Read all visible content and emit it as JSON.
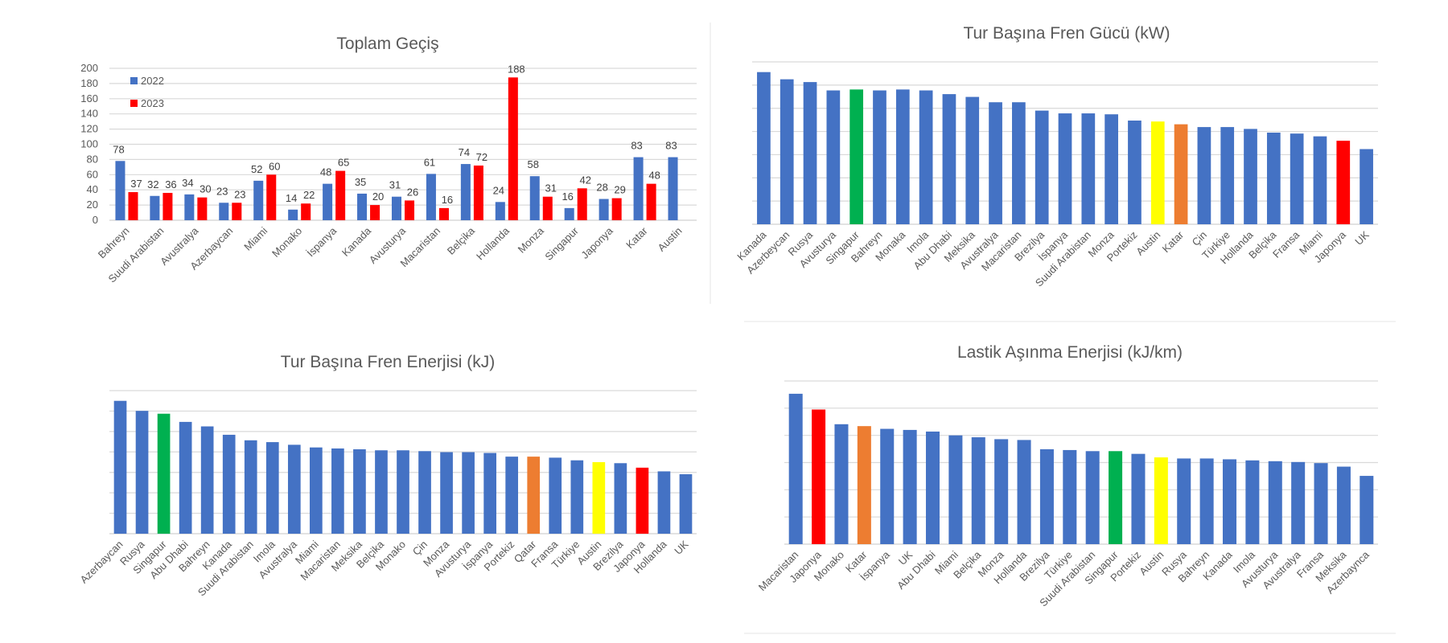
{
  "palette": {
    "blue": "#4472c4",
    "red": "#ff0000",
    "green": "#00b050",
    "yellow": "#ffff00",
    "orange": "#ed7d31"
  },
  "chart_data": [
    {
      "id": "toplam-gecis",
      "type": "bar",
      "title": "Toplam Geçiş",
      "xlabel": "",
      "ylabel": "",
      "ylim": [
        0,
        200
      ],
      "yticks": [
        0,
        20,
        40,
        60,
        80,
        100,
        120,
        140,
        160,
        180,
        200
      ],
      "grid": true,
      "legend": "top-left",
      "categories": [
        "Bahreyn",
        "Suudi Arabistan",
        "Avustralya",
        "Azerbaycan",
        "Miami",
        "Monako",
        "İspanya",
        "Kanada",
        "Avusturya",
        "Macaristan",
        "Belçika",
        "Hollanda",
        "Monza",
        "Singapur",
        "Japonya",
        "Katar",
        "Austin"
      ],
      "series": [
        {
          "name": "2022",
          "color": "#4472c4",
          "values": [
            78,
            32,
            34,
            23,
            52,
            14,
            48,
            35,
            31,
            61,
            74,
            24,
            58,
            16,
            28,
            83,
            83
          ]
        },
        {
          "name": "2023",
          "color": "#ff0000",
          "values": [
            37,
            36,
            30,
            23,
            60,
            22,
            65,
            20,
            26,
            16,
            72,
            188,
            31,
            42,
            29,
            48,
            null
          ]
        }
      ],
      "data_labels": true
    },
    {
      "id": "fren-gucu",
      "type": "bar",
      "title": "Tur Başına Fren Gücü (kW)",
      "xlabel": "",
      "ylabel": "",
      "note": "No y-axis tick labels shown; values are estimated in gridline units (7 gridline intervals).",
      "ylim": [
        0,
        7
      ],
      "grid": true,
      "legend": "none",
      "categories": [
        "Kanada",
        "Azerbeycan",
        "Rusya",
        "Avusturya",
        "Singapur",
        "Bahreyn",
        "Monaka",
        "Imola",
        "Abu Dhabi",
        "Meksika",
        "Avustralya",
        "Macaristan",
        "Brezilya",
        "İspanya",
        "Suudi Arabistan",
        "Monza",
        "Portekiz",
        "Austin",
        "Katar",
        "Çin",
        "Türkiye",
        "Hollanda",
        "Belçika",
        "Fransa",
        "Miami",
        "Japonya",
        "UK"
      ],
      "values": [
        6.56,
        6.25,
        6.13,
        5.77,
        5.81,
        5.77,
        5.81,
        5.77,
        5.61,
        5.49,
        5.26,
        5.26,
        4.9,
        4.78,
        4.78,
        4.74,
        4.47,
        4.43,
        4.31,
        4.19,
        4.19,
        4.11,
        3.95,
        3.91,
        3.79,
        3.6,
        3.24
      ],
      "colors": [
        "blue",
        "blue",
        "blue",
        "blue",
        "green",
        "blue",
        "blue",
        "blue",
        "blue",
        "blue",
        "blue",
        "blue",
        "blue",
        "blue",
        "blue",
        "blue",
        "blue",
        "yellow",
        "orange",
        "blue",
        "blue",
        "blue",
        "blue",
        "blue",
        "blue",
        "red",
        "blue"
      ]
    },
    {
      "id": "fren-enerjisi",
      "type": "bar",
      "title": "Tur Başına Fren Enerjisi (kJ)",
      "xlabel": "",
      "ylabel": "",
      "note": "No y-axis tick labels shown; values are estimated in gridline units (7 gridline intervals).",
      "ylim": [
        0,
        7
      ],
      "grid": true,
      "legend": "none",
      "categories": [
        "Azerbaycan",
        "Rusya",
        "Singapur",
        "Abu Dhabi",
        "Bahreyn",
        "Kanada",
        "Suudi Arabistan",
        "Imola",
        "Avustralya",
        "Miami",
        "Macaristan",
        "Meksika",
        "Belçika",
        "Monako",
        "Çin",
        "Monza",
        "Avusturya",
        "İspanya",
        "Portekiz",
        "Qatar",
        "Fransa",
        "Türkiye",
        "Austin",
        "Brezilya",
        "Japonya",
        "Hollanda",
        "UK"
      ],
      "values": [
        6.5,
        6.01,
        5.87,
        5.47,
        5.25,
        4.84,
        4.57,
        4.48,
        4.35,
        4.22,
        4.17,
        4.13,
        4.08,
        4.08,
        4.04,
        3.99,
        3.99,
        3.95,
        3.77,
        3.77,
        3.72,
        3.59,
        3.5,
        3.45,
        3.23,
        3.05,
        2.91
      ],
      "colors": [
        "blue",
        "blue",
        "green",
        "blue",
        "blue",
        "blue",
        "blue",
        "blue",
        "blue",
        "blue",
        "blue",
        "blue",
        "blue",
        "blue",
        "blue",
        "blue",
        "blue",
        "blue",
        "blue",
        "orange",
        "blue",
        "blue",
        "yellow",
        "blue",
        "red",
        "blue",
        "blue"
      ]
    },
    {
      "id": "lastik-asinma",
      "type": "bar",
      "title": "Lastik Aşınma Enerjisi (kJ/km)",
      "xlabel": "",
      "ylabel": "",
      "note": "No y-axis tick labels shown; values are estimated in gridline units (6 gridline intervals).",
      "ylim": [
        0,
        6
      ],
      "grid": true,
      "legend": "none",
      "categories": [
        "Macaristan",
        "Japonya",
        "Monako",
        "Katar",
        "İspanya",
        "UK",
        "Abu Dhabi",
        "Miami",
        "Belçika",
        "Monza",
        "Hollanda",
        "Brezilya",
        "Türkiye",
        "Suudi Arabistan",
        "Singapur",
        "Portekiz",
        "Austin",
        "Rusya",
        "Bahreyn",
        "Kanada",
        "Imola",
        "Avusturya",
        "Avustralya",
        "Fransa",
        "Meksika",
        "Azerbaynca"
      ],
      "values": [
        5.53,
        4.95,
        4.41,
        4.34,
        4.24,
        4.2,
        4.14,
        4.0,
        3.93,
        3.86,
        3.83,
        3.49,
        3.46,
        3.42,
        3.42,
        3.32,
        3.19,
        3.15,
        3.15,
        3.12,
        3.08,
        3.05,
        3.02,
        2.98,
        2.85,
        2.51
      ],
      "colors": [
        "blue",
        "red",
        "blue",
        "orange",
        "blue",
        "blue",
        "blue",
        "blue",
        "blue",
        "blue",
        "blue",
        "blue",
        "blue",
        "blue",
        "green",
        "blue",
        "yellow",
        "blue",
        "blue",
        "blue",
        "blue",
        "blue",
        "blue",
        "blue",
        "blue",
        "blue"
      ]
    }
  ]
}
